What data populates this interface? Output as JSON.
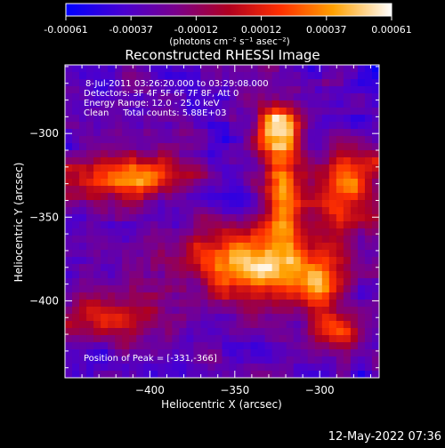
{
  "colorbar": {
    "tick_labels": [
      "-0.00061",
      "-0.00037",
      "-0.00012",
      "0.00012",
      "0.00037",
      "0.00061"
    ],
    "unit_label": "(photons cm⁻² s⁻¹ asec⁻²)"
  },
  "chart_data": {
    "type": "heatmap",
    "title": "Reconstructed RHESSI Image",
    "xlabel": "Heliocentric X (arcsec)",
    "ylabel": "Heliocentric Y (arcsec)",
    "xlim": [
      -450,
      -265
    ],
    "ylim": [
      -446,
      -259
    ],
    "x_ticks": [
      -400,
      -350,
      -300
    ],
    "y_ticks": [
      -300,
      -350,
      -400
    ],
    "x_tick_labels": [
      "−400",
      "−350",
      "−300"
    ],
    "y_tick_labels": [
      "−300",
      "−350",
      "−400"
    ],
    "colormap_range": [
      -0.00061,
      0.00061
    ],
    "info_lines": [
      "8-Jul-2011 03:26:20.000 to 03:29:08.000",
      "Detectors: 3F 4F 5F 6F 7F 8F, Att 0",
      "Energy Range: 12.0 - 25.0 keV",
      "Clean     Total counts: 5.88E+03"
    ],
    "peak_label": "Position of Peak = [-331,-366]",
    "peak": [
      -331,
      -366
    ],
    "sources": [
      {
        "x": -340,
        "y": -378,
        "sx": 30,
        "sy": 15,
        "amp": 1.0
      },
      {
        "x": -322,
        "y": -335,
        "sx": 8,
        "sy": 30,
        "amp": 0.85
      },
      {
        "x": -325,
        "y": -298,
        "sx": 10,
        "sy": 10,
        "amp": 0.9
      },
      {
        "x": -428,
        "y": -327,
        "sx": 22,
        "sy": 10,
        "amp": 0.75
      },
      {
        "x": -395,
        "y": -325,
        "sx": 18,
        "sy": 7,
        "amp": 0.55
      },
      {
        "x": -282,
        "y": -335,
        "sx": 16,
        "sy": 18,
        "amp": 0.8
      },
      {
        "x": -300,
        "y": -392,
        "sx": 12,
        "sy": 12,
        "amp": 0.6
      },
      {
        "x": -420,
        "y": -408,
        "sx": 25,
        "sy": 10,
        "amp": 0.55
      },
      {
        "x": -290,
        "y": -418,
        "sx": 12,
        "sy": 8,
        "amp": 0.55
      }
    ]
  },
  "footer": {
    "timestamp": "12-May-2022 07:36"
  }
}
